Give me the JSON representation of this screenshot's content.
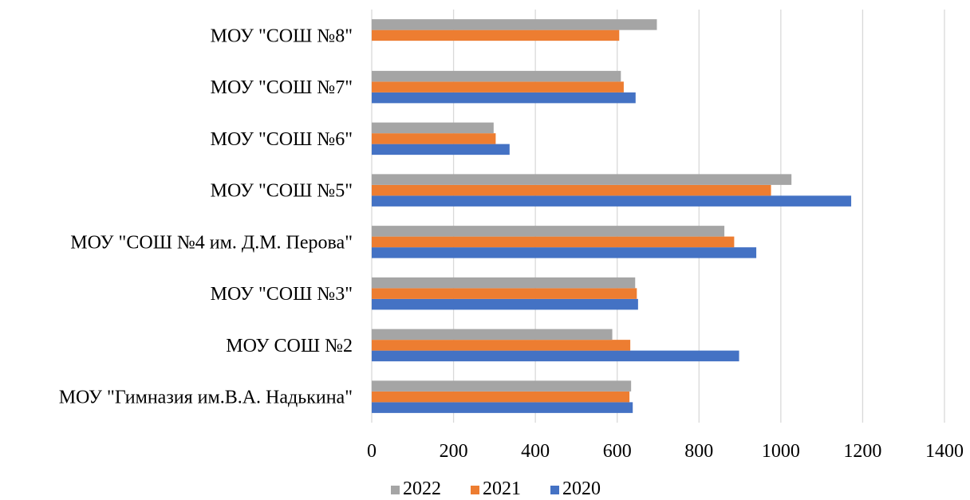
{
  "chart_data": {
    "type": "bar",
    "orientation": "horizontal",
    "categories": [
      "МОУ \"Гимназия им.В.А. Надькина\"",
      "МОУ СОШ №2",
      "МОУ \"СОШ №3\"",
      "МОУ \"СОШ №4 им. Д.М. Перова\"",
      "МОУ \"СОШ №5\"",
      "МОУ \"СОШ №6\"",
      "МОУ \"СОШ №7\"",
      "МОУ \"СОШ №8\""
    ],
    "series": [
      {
        "name": "2020",
        "color": "#4472C4",
        "values": [
          638,
          898,
          651,
          940,
          1172,
          337,
          645,
          null
        ]
      },
      {
        "name": "2021",
        "color": "#ED7D31",
        "values": [
          630,
          632,
          648,
          886,
          976,
          303,
          616,
          605
        ]
      },
      {
        "name": "2022",
        "color": "#A5A5A5",
        "values": [
          634,
          588,
          644,
          862,
          1026,
          298,
          609,
          697
        ]
      }
    ],
    "xlim": [
      0,
      1400
    ],
    "xticks": [
      "0",
      "200",
      "400",
      "600",
      "800",
      "1000",
      "1200",
      "1400"
    ],
    "grid": true,
    "legend_position": "bottom",
    "legend_order": [
      "2022",
      "2021",
      "2020"
    ],
    "title": "",
    "xlabel": "",
    "ylabel": ""
  }
}
